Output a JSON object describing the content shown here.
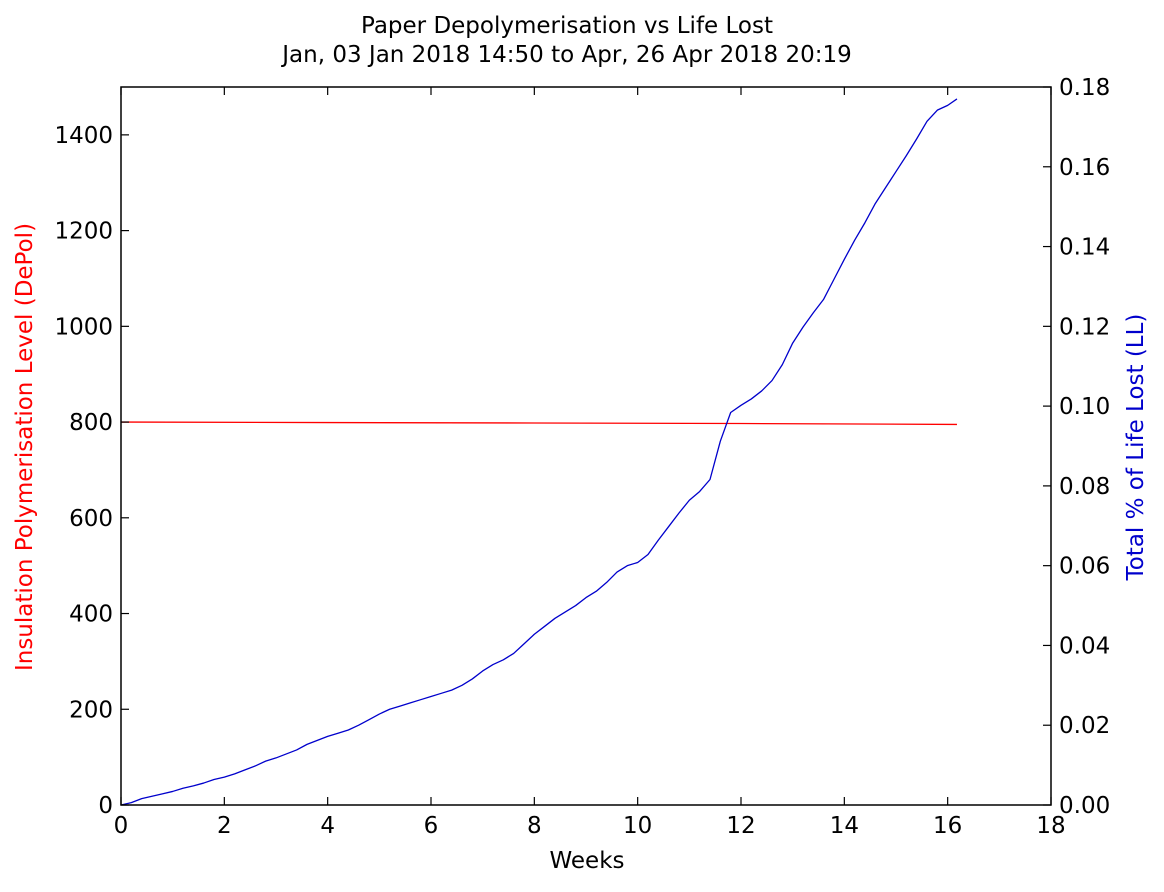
{
  "chart_data": {
    "type": "line",
    "title": "Paper Depolymerisation vs Life Lost",
    "subtitle": "Jan, 03 Jan 2018 14:50 to Apr, 26 Apr 2018 20:19",
    "xlabel": "Weeks",
    "ylabel_left": "Insulation Polymerisation Level (DePol)",
    "ylabel_right": "Total % of Life Lost (LL)",
    "xlim": [
      0,
      18
    ],
    "ylim_left": [
      0,
      1500
    ],
    "ylim_right": [
      0,
      0.18
    ],
    "x_ticks": [
      0,
      2,
      4,
      6,
      8,
      10,
      12,
      14,
      16,
      18
    ],
    "y_left_ticks": [
      0,
      200,
      400,
      600,
      800,
      1000,
      1200,
      1400
    ],
    "y_right_ticks": [
      0.0,
      0.02,
      0.04,
      0.06,
      0.08,
      0.1,
      0.12,
      0.14,
      0.16,
      0.18
    ],
    "x_tick_labels": [
      "0",
      "2",
      "4",
      "6",
      "8",
      "10",
      "12",
      "14",
      "16",
      "18"
    ],
    "y_left_tick_labels": [
      "0",
      "200",
      "400",
      "600",
      "800",
      "1000",
      "1200",
      "1400"
    ],
    "y_right_tick_labels": [
      "0.00",
      "0.02",
      "0.04",
      "0.06",
      "0.08",
      "0.10",
      "0.12",
      "0.14",
      "0.16",
      "0.18"
    ],
    "grid": false,
    "colors": {
      "depol": "#ff0000",
      "life_lost": "#0000cc",
      "axes": "#000000",
      "ylabel_left": "#ff0000",
      "ylabel_right": "#0000cc"
    },
    "series": [
      {
        "axis": "left",
        "x": [
          0,
          4,
          8,
          12,
          16.18
        ],
        "values": [
          800,
          799,
          798,
          797,
          795
        ]
      },
      {
        "axis": "right",
        "x": [
          0,
          0.2,
          0.4,
          0.6,
          0.8,
          1.0,
          1.2,
          1.4,
          1.6,
          1.8,
          2.0,
          2.2,
          2.4,
          2.6,
          2.8,
          3.0,
          3.2,
          3.4,
          3.6,
          3.8,
          4.0,
          4.2,
          4.4,
          4.6,
          4.8,
          5.0,
          5.2,
          5.4,
          5.6,
          5.8,
          6.0,
          6.2,
          6.4,
          6.6,
          6.8,
          7.0,
          7.2,
          7.4,
          7.6,
          7.8,
          8.0,
          8.2,
          8.4,
          8.6,
          8.8,
          9.0,
          9.2,
          9.4,
          9.6,
          9.8,
          10.0,
          10.2,
          10.4,
          10.6,
          10.8,
          11.0,
          11.2,
          11.4,
          11.6,
          11.8,
          12.0,
          12.2,
          12.4,
          12.6,
          12.8,
          13.0,
          13.2,
          13.4,
          13.6,
          13.8,
          14.0,
          14.2,
          14.4,
          14.6,
          14.8,
          15.0,
          15.2,
          15.4,
          15.6,
          15.8,
          16.0,
          16.18
        ],
        "values": [
          0.0,
          0.0006,
          0.0016,
          0.0022,
          0.0028,
          0.0034,
          0.0042,
          0.0048,
          0.0055,
          0.0064,
          0.007,
          0.0078,
          0.0088,
          0.0098,
          0.011,
          0.0118,
          0.0128,
          0.0138,
          0.0152,
          0.0162,
          0.0172,
          0.018,
          0.0188,
          0.02,
          0.0214,
          0.0228,
          0.024,
          0.0248,
          0.0256,
          0.0264,
          0.0272,
          0.028,
          0.0288,
          0.03,
          0.0316,
          0.0336,
          0.0352,
          0.0364,
          0.038,
          0.0404,
          0.0428,
          0.0448,
          0.0468,
          0.0484,
          0.05,
          0.052,
          0.0536,
          0.0558,
          0.0584,
          0.06,
          0.0608,
          0.0628,
          0.0664,
          0.0698,
          0.0732,
          0.0764,
          0.0786,
          0.0816,
          0.0912,
          0.0984,
          0.1002,
          0.1018,
          0.1038,
          0.1064,
          0.1104,
          0.1158,
          0.1198,
          0.1234,
          0.1268,
          0.1318,
          0.1368,
          0.1416,
          0.146,
          0.1508,
          0.1548,
          0.1588,
          0.1628,
          0.167,
          0.1714,
          0.1742,
          0.1754,
          0.177
        ]
      }
    ]
  }
}
